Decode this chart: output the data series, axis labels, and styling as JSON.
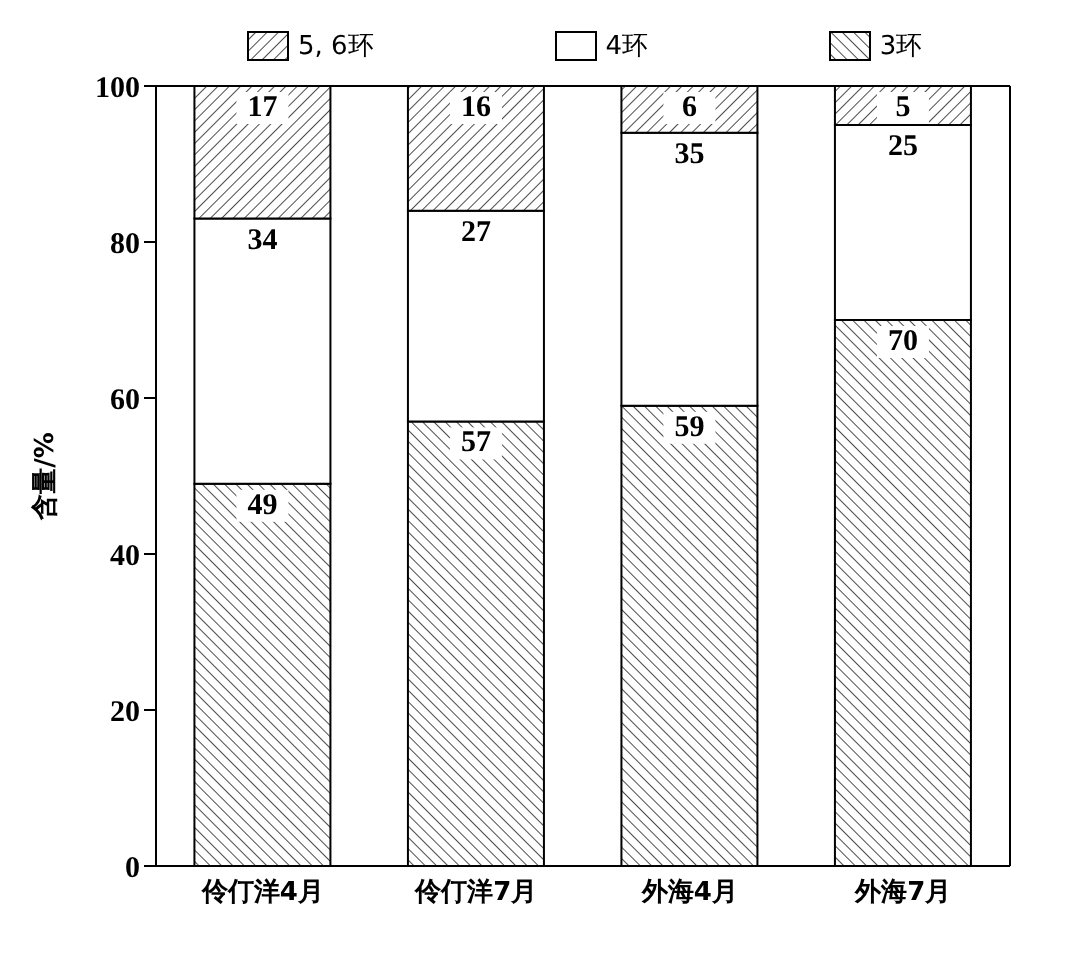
{
  "chart_data": {
    "type": "bar",
    "stacked": true,
    "ylabel": "含量/%",
    "categories": [
      "伶仃洋4月",
      "伶仃洋7月",
      "外海4月",
      "外海7月"
    ],
    "series": [
      {
        "name": "3环",
        "color": "#000000",
        "values": [
          49,
          57,
          59,
          70
        ]
      },
      {
        "name": "4环",
        "color": "#ffffff",
        "values": [
          34,
          27,
          35,
          25
        ]
      },
      {
        "name": "5, 6环",
        "color": "#000000",
        "values": [
          17,
          16,
          6,
          5
        ]
      }
    ],
    "ylim": [
      0,
      100
    ],
    "yticks": [
      0,
      20,
      40,
      60,
      80,
      100
    ],
    "data_labels": true,
    "legend": "top",
    "grid": false
  }
}
